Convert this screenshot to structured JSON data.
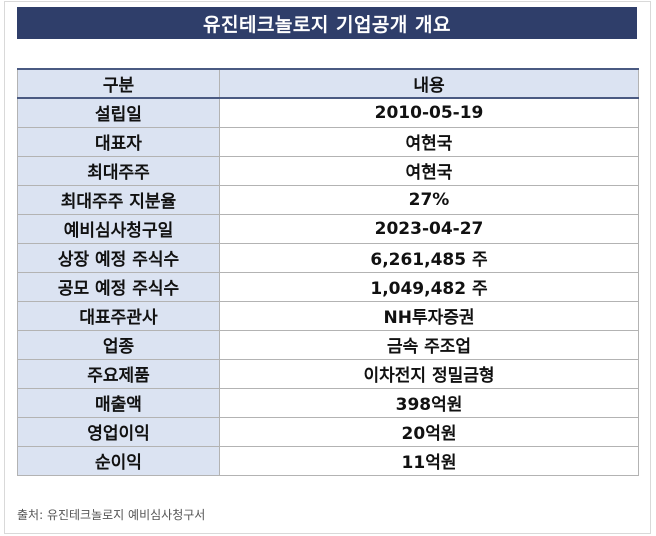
{
  "title": "유진테크놀로지 기업공개 개요",
  "table": {
    "headers": [
      "구분",
      "내용"
    ],
    "rows": [
      {
        "label": "설립일",
        "value": "2010-05-19"
      },
      {
        "label": "대표자",
        "value": "여현국"
      },
      {
        "label": "최대주주",
        "value": "여현국"
      },
      {
        "label": "최대주주 지분율",
        "value": "27%"
      },
      {
        "label": "예비심사청구일",
        "value": "2023-04-27"
      },
      {
        "label": "상장 예정 주식수",
        "value": "6,261,485 주"
      },
      {
        "label": "공모 예정 주식수",
        "value": "1,049,482 주"
      },
      {
        "label": "대표주관사",
        "value": "NH투자증권"
      },
      {
        "label": "업종",
        "value": "금속 주조업"
      },
      {
        "label": "주요제품",
        "value": "이차전지 정밀금형"
      },
      {
        "label": "매출액",
        "value": "398억원"
      },
      {
        "label": "영업이익",
        "value": "20억원"
      },
      {
        "label": "순이익",
        "value": "11억원"
      }
    ]
  },
  "source": "출처: 유진테크놀로지 예비심사청구서",
  "colors": {
    "title_bg": "#2f3e6a",
    "label_bg": "#dbe3f2",
    "border": "#b3b3b3"
  }
}
